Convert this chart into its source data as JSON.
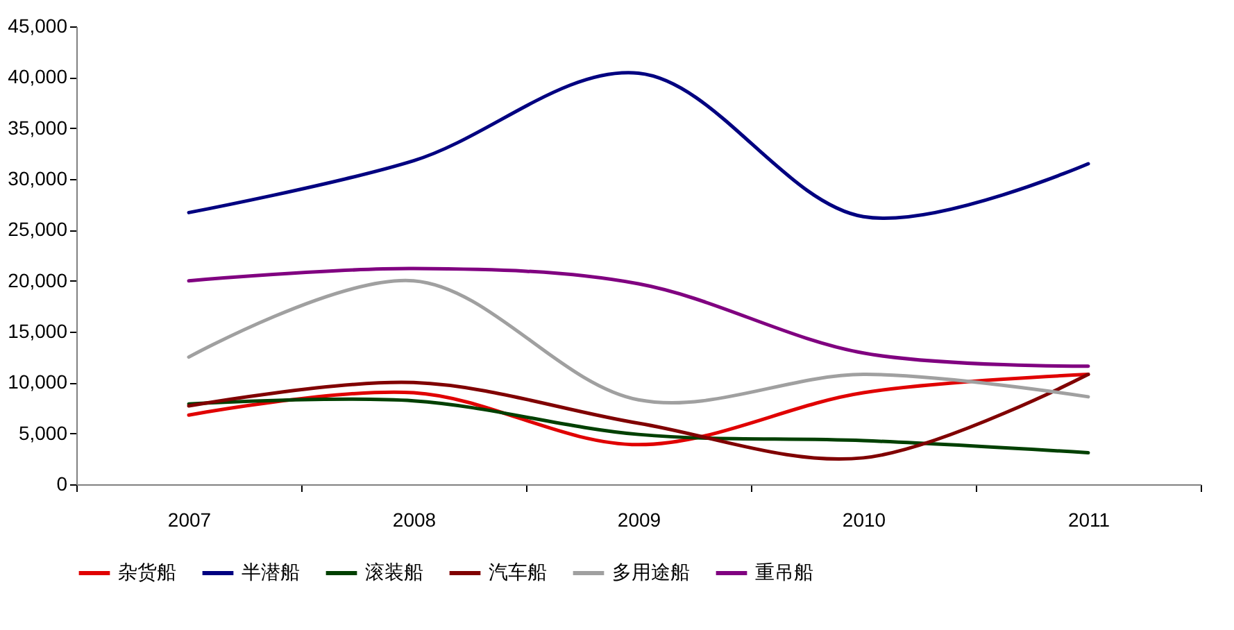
{
  "chart_data": {
    "type": "line",
    "categories": [
      "2007",
      "2008",
      "2009",
      "2010",
      "2011"
    ],
    "series": [
      {
        "name": "杂货船",
        "color": "#e00000",
        "values": [
          6800,
          9000,
          3900,
          9000,
          10800
        ]
      },
      {
        "name": "半潜船",
        "color": "#000080",
        "values": [
          26700,
          31800,
          40400,
          26300,
          31500
        ]
      },
      {
        "name": "滚装船",
        "color": "#004000",
        "values": [
          7900,
          8200,
          4900,
          4300,
          3100
        ]
      },
      {
        "name": "汽车船",
        "color": "#800000",
        "values": [
          7700,
          10000,
          6000,
          2600,
          10800
        ]
      },
      {
        "name": "多用途船",
        "color": "#a0a0a0",
        "values": [
          12500,
          20000,
          8300,
          10800,
          8600
        ]
      },
      {
        "name": "重吊船",
        "color": "#800080",
        "values": [
          20000,
          21200,
          19700,
          12900,
          11600
        ]
      }
    ],
    "ylim": [
      0,
      45000
    ],
    "yticks": [
      {
        "value": 0,
        "label": "0"
      },
      {
        "value": 5000,
        "label": "5,000"
      },
      {
        "value": 10000,
        "label": "10,000"
      },
      {
        "value": 15000,
        "label": "15,000"
      },
      {
        "value": 20000,
        "label": "20,000"
      },
      {
        "value": 25000,
        "label": "25,000"
      },
      {
        "value": 30000,
        "label": "30,000"
      },
      {
        "value": 35000,
        "label": "35,000"
      },
      {
        "value": 40000,
        "label": "40,000"
      },
      {
        "value": 45000,
        "label": "45,000"
      }
    ],
    "grid": false,
    "legend": "bottom",
    "marker": "none",
    "line_style": "solid"
  }
}
